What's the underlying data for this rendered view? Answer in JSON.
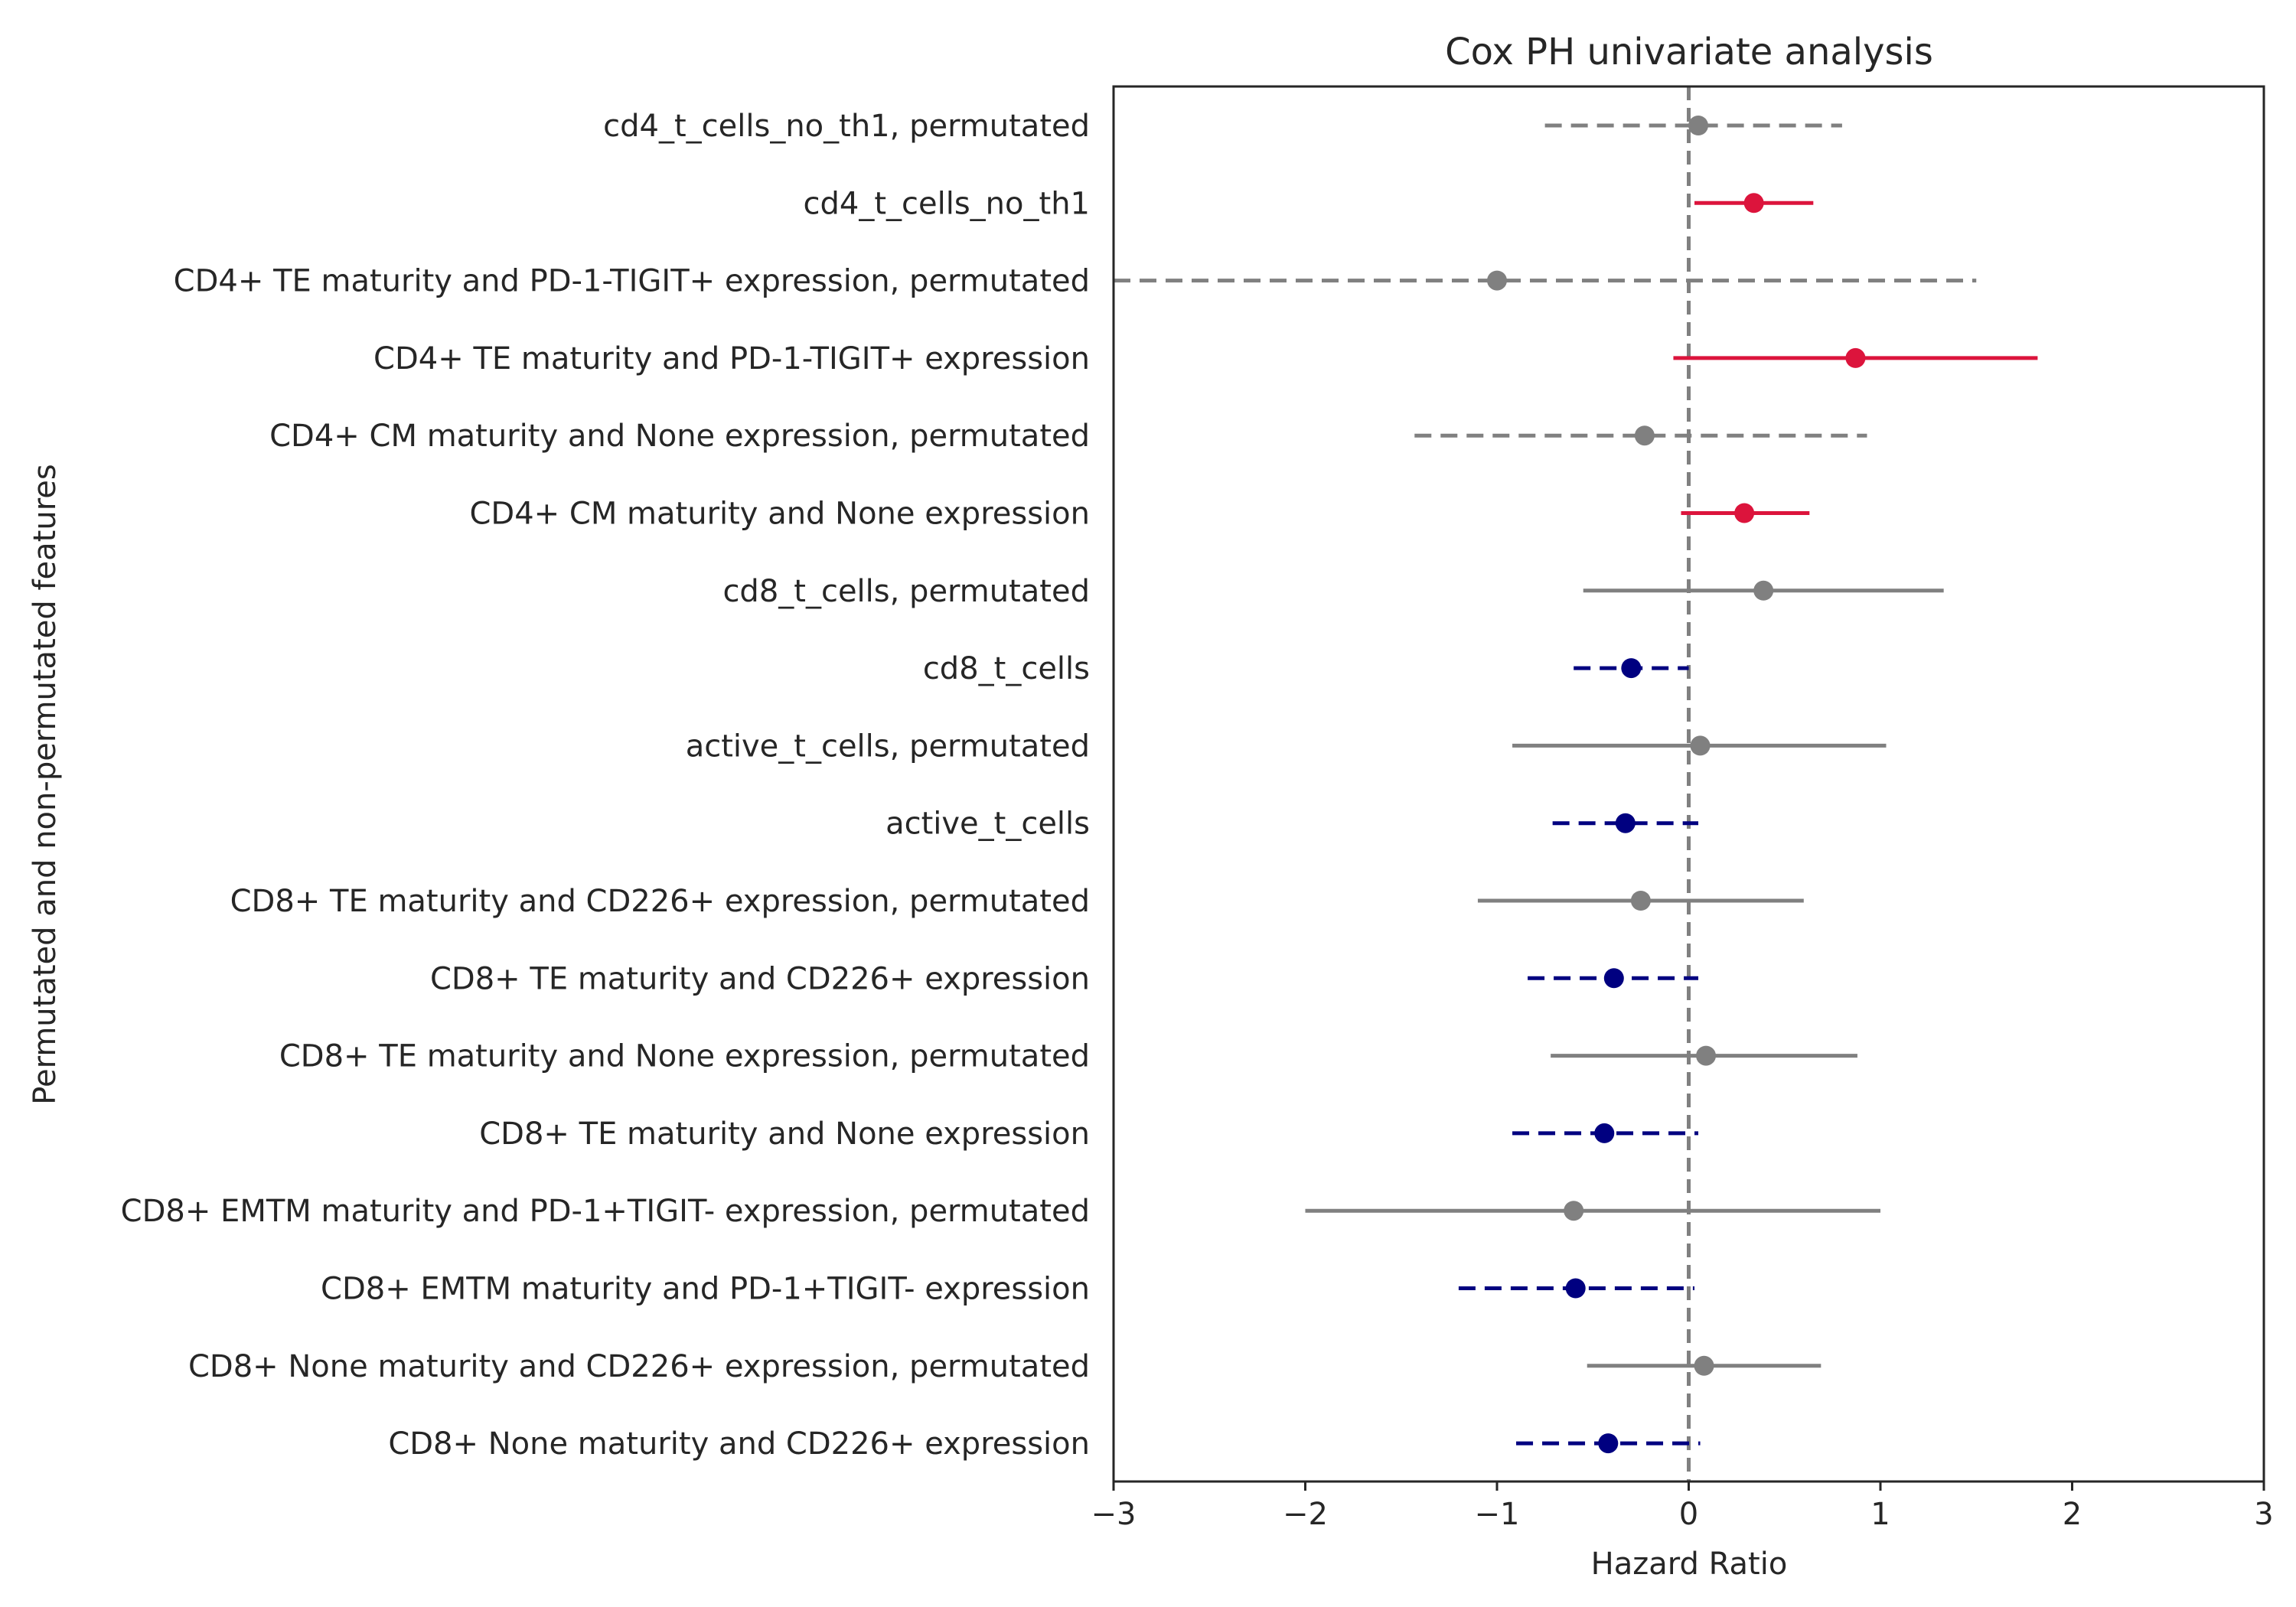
{
  "chart_data": {
    "type": "forest",
    "title": "Cox PH univariate analysis",
    "xlabel": "Hazard Ratio",
    "ylabel": "Permutated and non-permutated features",
    "xlim": [
      -3,
      3
    ],
    "xticks": [
      -3,
      -2,
      -1,
      0,
      1,
      2,
      3
    ],
    "xtick_labels": [
      "−3",
      "−2",
      "−1",
      "0",
      "1",
      "2",
      "3"
    ],
    "reference_line": 0,
    "grid": false,
    "colors": {
      "positive": "#dc143c",
      "negative": "#000080",
      "permutated": "#808080",
      "reference": "#808080",
      "axis": "#262626"
    },
    "features": [
      {
        "label": "cd4_t_cells_no_th1, permutated",
        "estimate": 0.05,
        "ci": [
          -0.75,
          0.8
        ],
        "group": "permutated",
        "dashed": true
      },
      {
        "label": "cd4_t_cells_no_th1",
        "estimate": 0.34,
        "ci": [
          0.03,
          0.65
        ],
        "group": "positive",
        "dashed": false
      },
      {
        "label": "CD4+ TE maturity and PD-1-TIGIT+ expression, permutated",
        "estimate": -1.0,
        "ci": [
          -3.0,
          1.5
        ],
        "group": "permutated",
        "dashed": true
      },
      {
        "label": "CD4+ TE maturity and PD-1-TIGIT+ expression",
        "estimate": 0.87,
        "ci": [
          -0.08,
          1.82
        ],
        "group": "positive",
        "dashed": false
      },
      {
        "label": "CD4+ CM maturity and None expression, permutated",
        "estimate": -0.23,
        "ci": [
          -1.43,
          0.93
        ],
        "group": "permutated",
        "dashed": true
      },
      {
        "label": "CD4+ CM maturity and None expression",
        "estimate": 0.29,
        "ci": [
          -0.04,
          0.63
        ],
        "group": "positive",
        "dashed": false
      },
      {
        "label": "cd8_t_cells, permutated",
        "estimate": 0.39,
        "ci": [
          -0.55,
          1.33
        ],
        "group": "permutated",
        "dashed": false
      },
      {
        "label": "cd8_t_cells",
        "estimate": -0.3,
        "ci": [
          -0.6,
          0.0
        ],
        "group": "negative",
        "dashed": true
      },
      {
        "label": "active_t_cells, permutated",
        "estimate": 0.06,
        "ci": [
          -0.92,
          1.03
        ],
        "group": "permutated",
        "dashed": false
      },
      {
        "label": "active_t_cells",
        "estimate": -0.33,
        "ci": [
          -0.71,
          0.05
        ],
        "group": "negative",
        "dashed": true
      },
      {
        "label": "CD8+ TE maturity and CD226+ expression, permutated",
        "estimate": -0.25,
        "ci": [
          -1.1,
          0.6
        ],
        "group": "permutated",
        "dashed": false
      },
      {
        "label": "CD8+ TE maturity and CD226+ expression",
        "estimate": -0.39,
        "ci": [
          -0.84,
          0.05
        ],
        "group": "negative",
        "dashed": true
      },
      {
        "label": "CD8+ TE maturity and None expression, permutated",
        "estimate": 0.09,
        "ci": [
          -0.72,
          0.88
        ],
        "group": "permutated",
        "dashed": false
      },
      {
        "label": "CD8+ TE maturity and None expression",
        "estimate": -0.44,
        "ci": [
          -0.92,
          0.05
        ],
        "group": "negative",
        "dashed": true
      },
      {
        "label": "CD8+ EMTM maturity and PD-1+TIGIT- expression, permutated",
        "estimate": -0.6,
        "ci": [
          -2.0,
          1.0
        ],
        "group": "permutated",
        "dashed": false
      },
      {
        "label": "CD8+ EMTM maturity and PD-1+TIGIT- expression",
        "estimate": -0.59,
        "ci": [
          -1.2,
          0.03
        ],
        "group": "negative",
        "dashed": true
      },
      {
        "label": "CD8+ None maturity and CD226+ expression, permutated",
        "estimate": 0.08,
        "ci": [
          -0.53,
          0.69
        ],
        "group": "permutated",
        "dashed": false
      },
      {
        "label": "CD8+ None maturity and CD226+ expression",
        "estimate": -0.42,
        "ci": [
          -0.9,
          0.06
        ],
        "group": "negative",
        "dashed": true
      }
    ]
  }
}
